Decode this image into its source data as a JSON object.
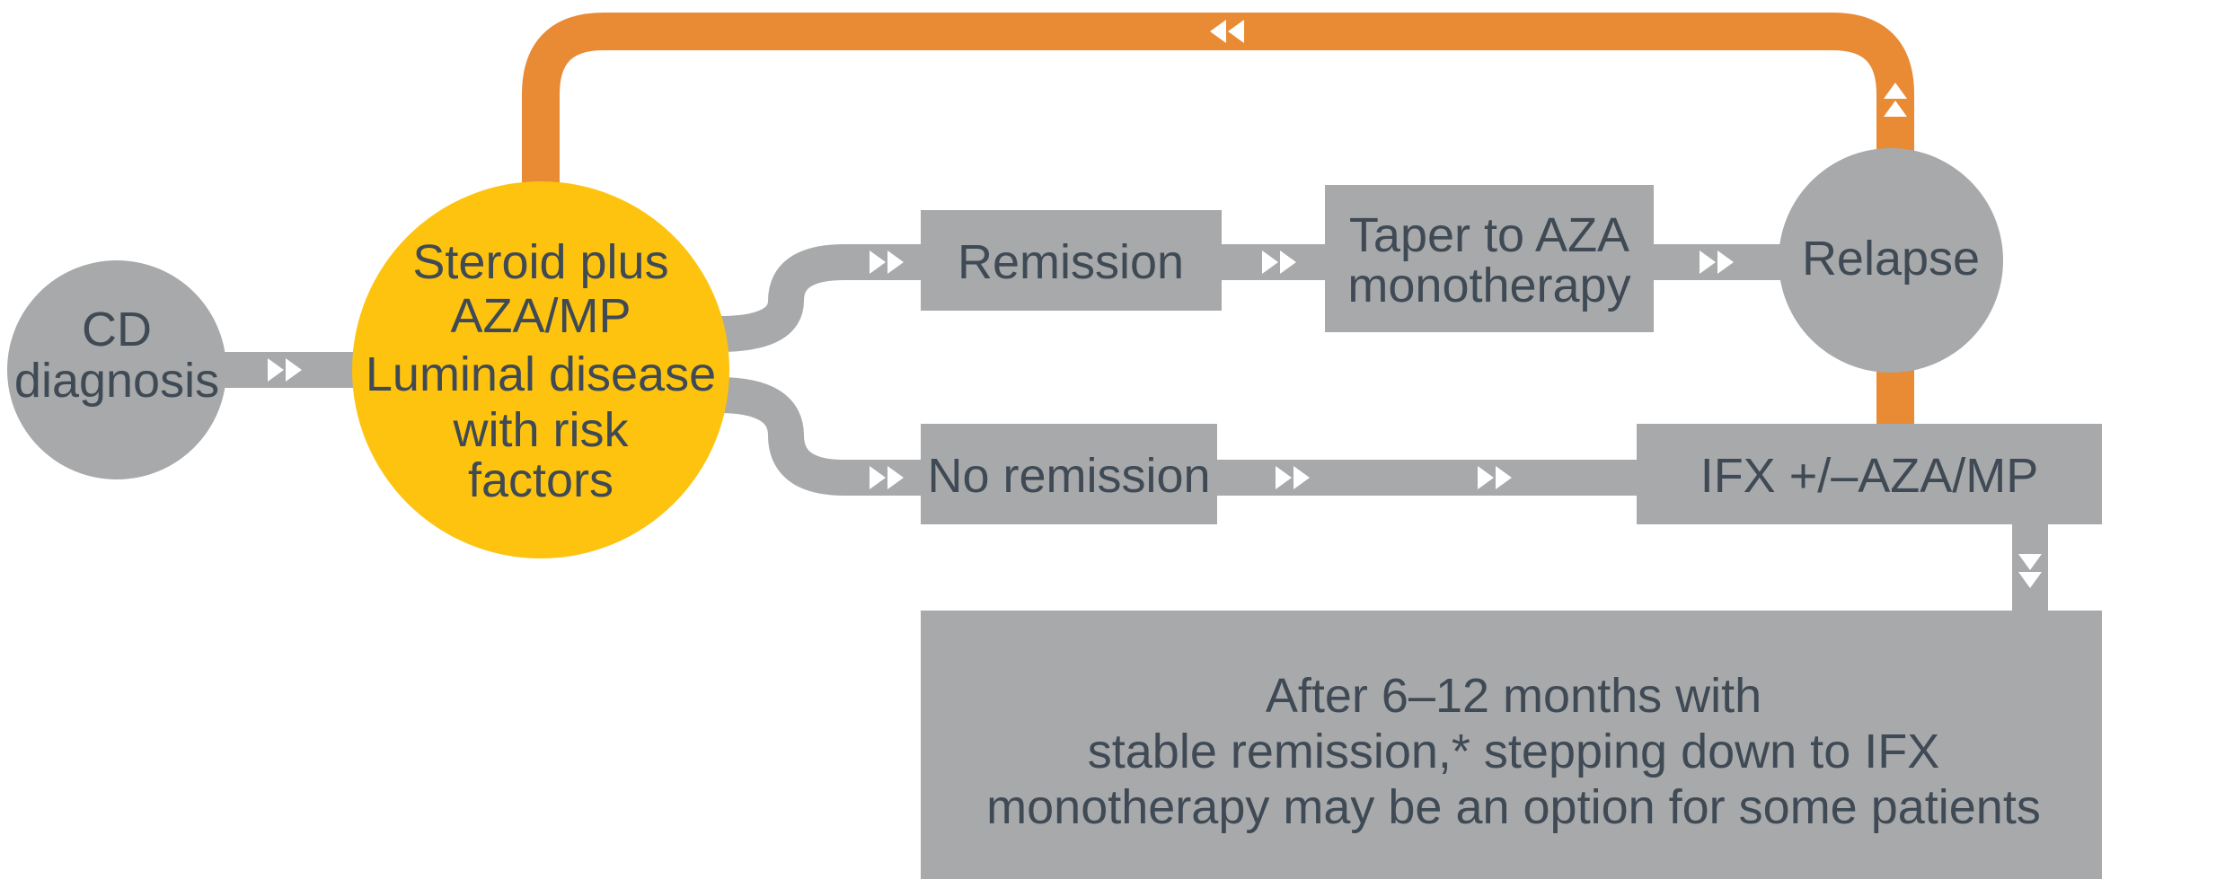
{
  "colors": {
    "grey": "#a7a9ab",
    "orange": "#e98a35",
    "yellow": "#fdc30f",
    "text": "#3f4a55",
    "arrow": "#ffffff"
  },
  "nodes": {
    "cd_diagnosis": [
      "CD",
      "diagnosis"
    ],
    "treatment": [
      "Steroid plus",
      "AZA/MP",
      "Luminal disease",
      "with risk",
      "factors"
    ],
    "remission": "Remission",
    "taper": [
      "Taper to AZA",
      "monotherapy"
    ],
    "relapse": "Relapse",
    "no_remission": "No remission",
    "ifx": "IFX +/–AZA/MP",
    "stepdown": [
      "After 6–12 months with",
      "stable remission,* stepping down to IFX",
      "monotherapy may be an option for some patients"
    ]
  },
  "icons": {
    "flow_arrow": "double-chevron-right-icon",
    "return_arrow": "double-chevron-left-icon",
    "up_arrow": "double-chevron-up-icon",
    "down_arrow": "double-chevron-down-icon"
  }
}
